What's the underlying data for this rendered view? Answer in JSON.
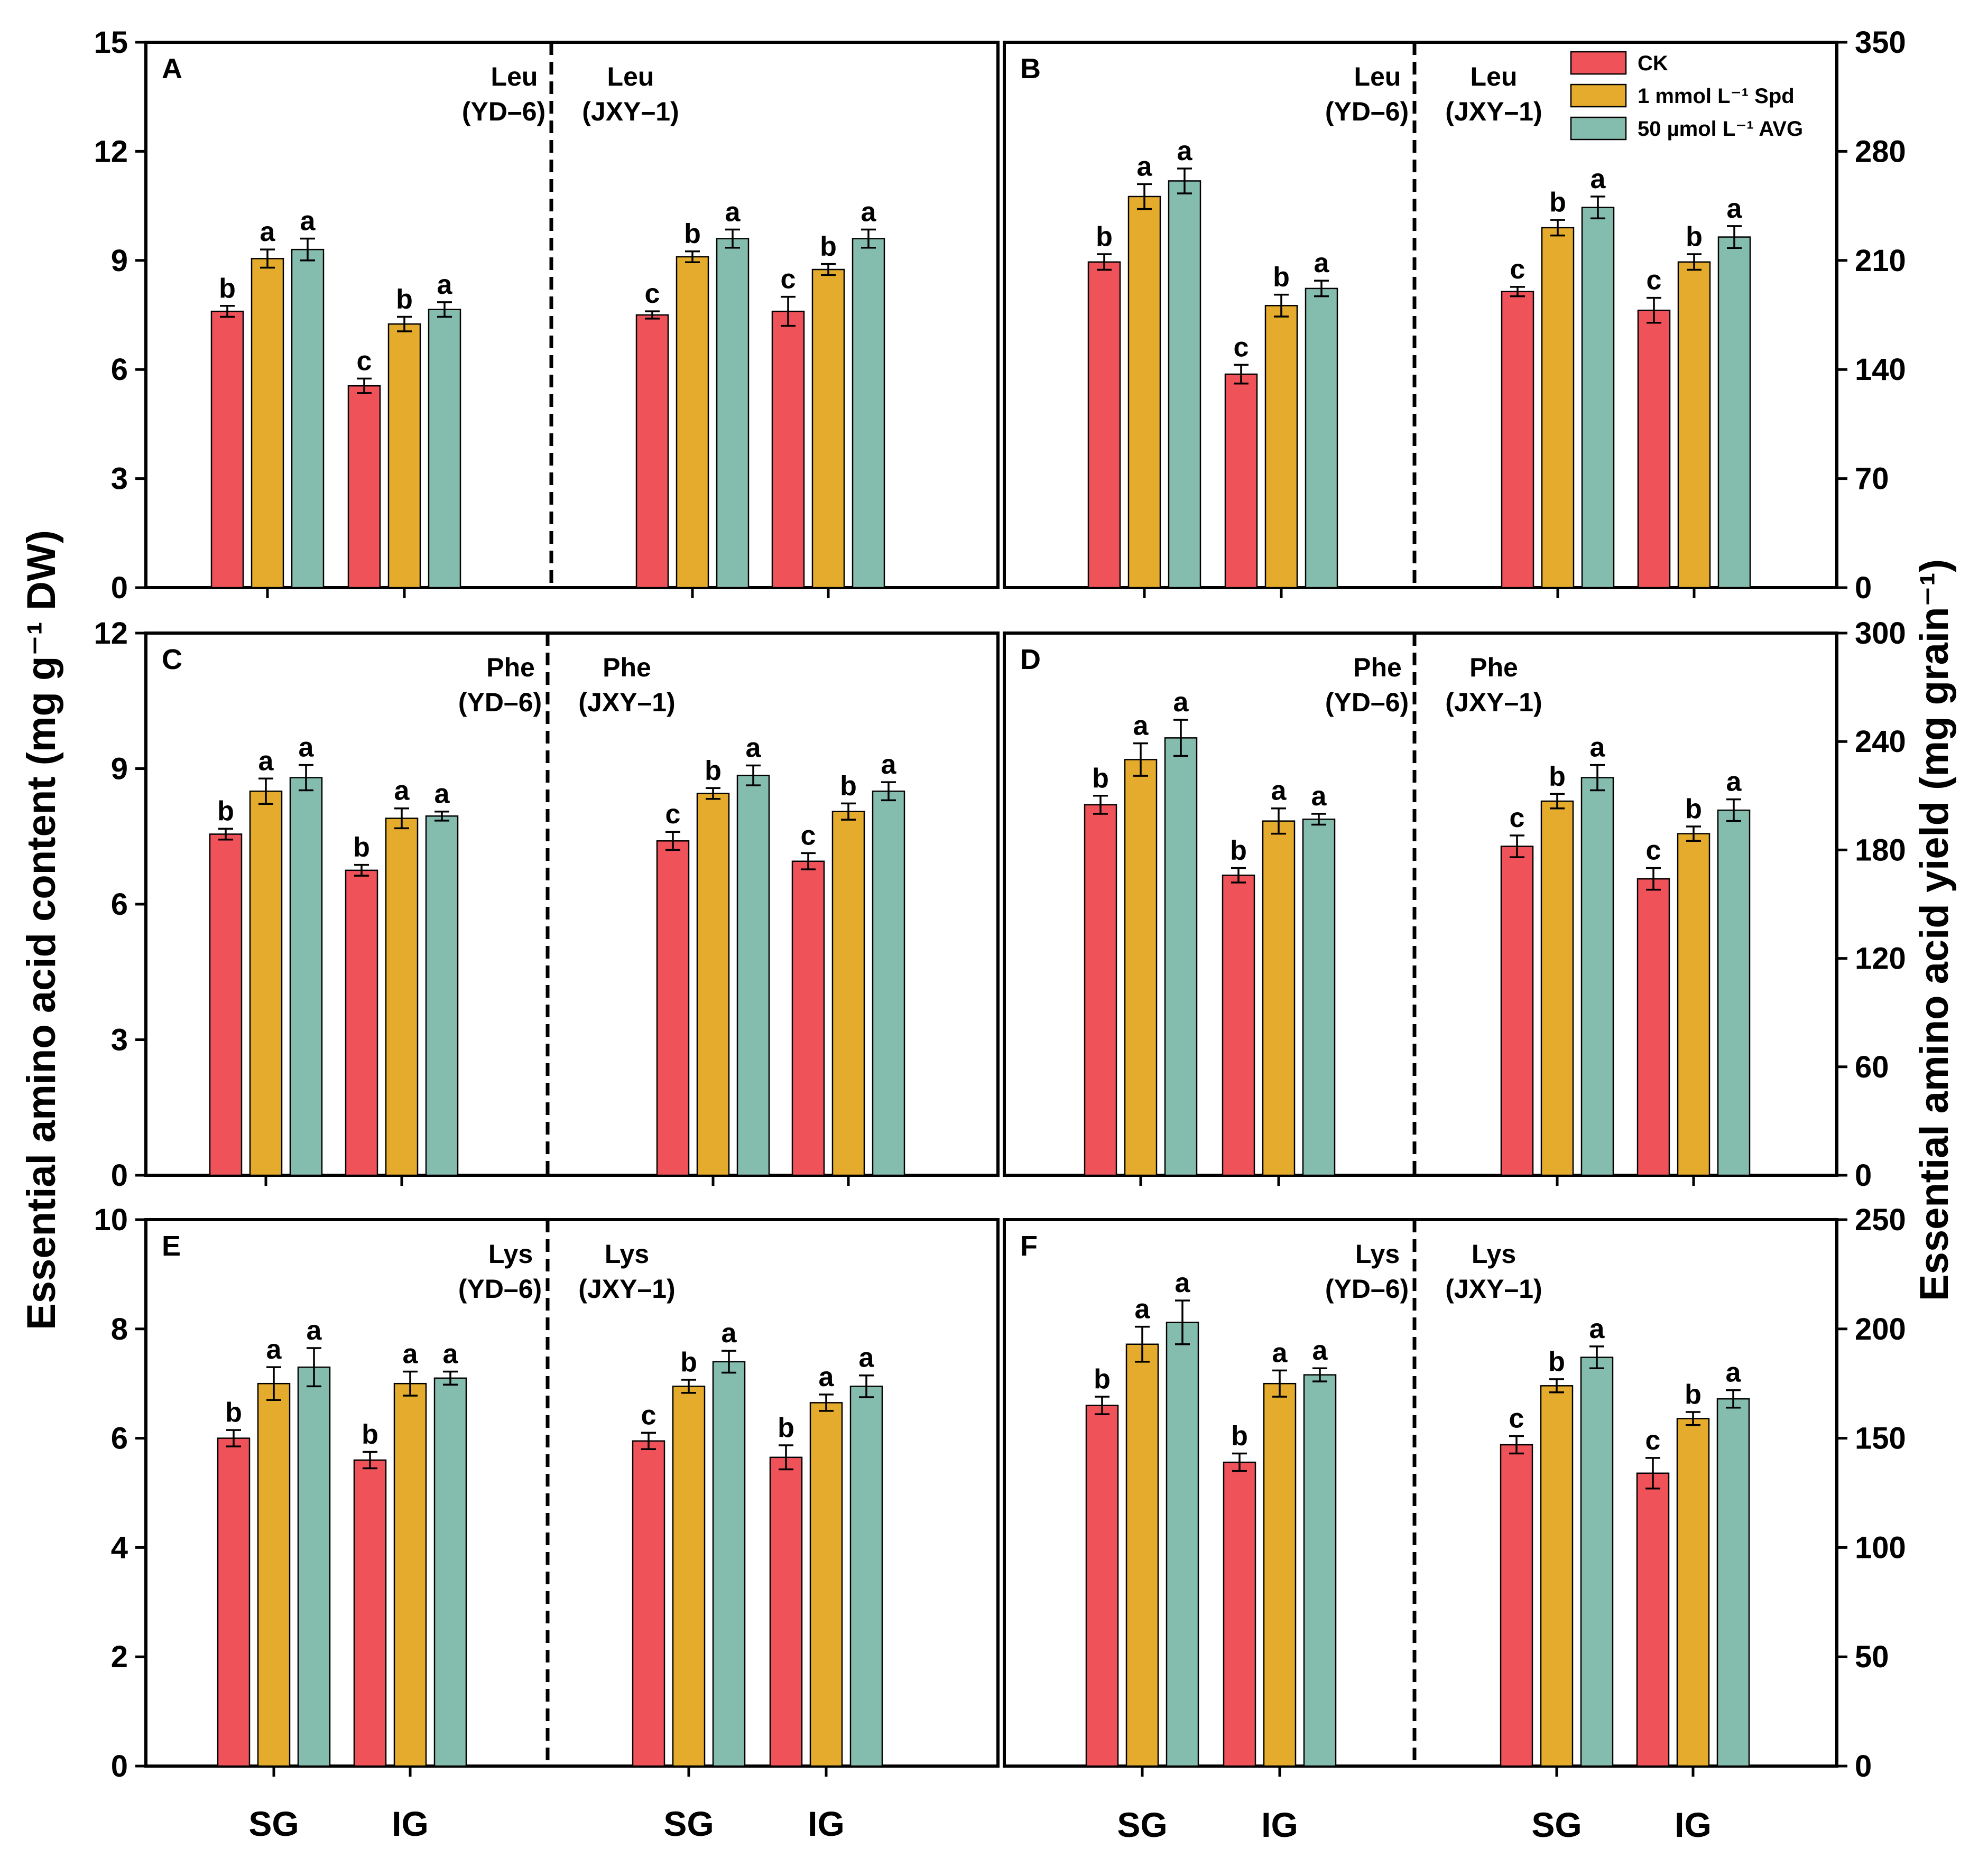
{
  "colors": {
    "CK": "#ef5258",
    "Spd": "#e4ab2c",
    "AVG": "#84bcae"
  },
  "axis_titles": {
    "left": "Essential amino acid content (mg g⁻¹ DW)",
    "right": "Essential amino acid yield (mg grain⁻¹)"
  },
  "legend": [
    {
      "key": "CK",
      "label": "CK"
    },
    {
      "key": "Spd",
      "label": "1 mmol L⁻¹ Spd"
    },
    {
      "key": "AVG",
      "label": "50 µmol L⁻¹ AVG"
    }
  ],
  "group_labels": [
    "SG",
    "IG"
  ],
  "chart_data": [
    {
      "id": "A",
      "type": "bar",
      "amino_acid": "Leu",
      "halves": [
        "YD–6",
        "JXY–1"
      ],
      "categories": [
        "SG",
        "IG"
      ],
      "ylim": [
        0,
        15
      ],
      "yticks": [
        0,
        3,
        6,
        9,
        12,
        15
      ],
      "axis_side": "left",
      "series": [
        {
          "name": "CK",
          "values": [
            [
              7.6,
              5.55
            ],
            [
              7.5,
              7.6
            ]
          ],
          "errors": [
            [
              0.15,
              0.2
            ],
            [
              0.1,
              0.4
            ]
          ],
          "letters": [
            [
              "b",
              "c"
            ],
            [
              "c",
              "c"
            ]
          ]
        },
        {
          "name": "1 mmol L⁻¹ Spd",
          "values": [
            [
              9.05,
              7.25
            ],
            [
              9.1,
              8.75
            ]
          ],
          "errors": [
            [
              0.25,
              0.2
            ],
            [
              0.15,
              0.15
            ]
          ],
          "letters": [
            [
              "a",
              "b"
            ],
            [
              "b",
              "b"
            ]
          ]
        },
        {
          "name": "50 µmol L⁻¹ AVG",
          "values": [
            [
              9.3,
              7.65
            ],
            [
              9.6,
              9.6
            ]
          ],
          "errors": [
            [
              0.3,
              0.2
            ],
            [
              0.25,
              0.25
            ]
          ],
          "letters": [
            [
              "a",
              "a"
            ],
            [
              "a",
              "a"
            ]
          ]
        }
      ]
    },
    {
      "id": "B",
      "type": "bar",
      "amino_acid": "Leu",
      "halves": [
        "YD–6",
        "JXY–1"
      ],
      "categories": [
        "SG",
        "IG"
      ],
      "ylim": [
        0,
        350
      ],
      "yticks": [
        0,
        70,
        140,
        210,
        280,
        350
      ],
      "axis_side": "right",
      "series": [
        {
          "name": "CK",
          "values": [
            [
              209,
              137
            ],
            [
              190,
              178
            ]
          ],
          "errors": [
            [
              5,
              6
            ],
            [
              3,
              8
            ]
          ],
          "letters": [
            [
              "b",
              "c"
            ],
            [
              "c",
              "c"
            ]
          ]
        },
        {
          "name": "1 mmol L⁻¹ Spd",
          "values": [
            [
              251,
              181
            ],
            [
              231,
              209
            ]
          ],
          "errors": [
            [
              8,
              7
            ],
            [
              5,
              5
            ]
          ],
          "letters": [
            [
              "a",
              "b"
            ],
            [
              "b",
              "b"
            ]
          ]
        },
        {
          "name": "50 µmol L⁻¹ AVG",
          "values": [
            [
              261,
              192
            ],
            [
              244,
              225
            ]
          ],
          "errors": [
            [
              8,
              5
            ],
            [
              7,
              7
            ]
          ],
          "letters": [
            [
              "a",
              "a"
            ],
            [
              "a",
              "a"
            ]
          ]
        }
      ]
    },
    {
      "id": "C",
      "type": "bar",
      "amino_acid": "Phe",
      "halves": [
        "YD–6",
        "JXY–1"
      ],
      "categories": [
        "SG",
        "IG"
      ],
      "ylim": [
        0,
        12
      ],
      "yticks": [
        0,
        3,
        6,
        9,
        12
      ],
      "axis_side": "left",
      "series": [
        {
          "name": "CK",
          "values": [
            [
              7.55,
              6.75
            ],
            [
              7.4,
              6.95
            ]
          ],
          "errors": [
            [
              0.12,
              0.12
            ],
            [
              0.2,
              0.18
            ]
          ],
          "letters": [
            [
              "b",
              "b"
            ],
            [
              "c",
              "c"
            ]
          ]
        },
        {
          "name": "1 mmol L⁻¹ Spd",
          "values": [
            [
              8.5,
              7.9
            ],
            [
              8.45,
              8.05
            ]
          ],
          "errors": [
            [
              0.28,
              0.22
            ],
            [
              0.12,
              0.18
            ]
          ],
          "letters": [
            [
              "a",
              "a"
            ],
            [
              "b",
              "b"
            ]
          ]
        },
        {
          "name": "50 µmol L⁻¹ AVG",
          "values": [
            [
              8.8,
              7.95
            ],
            [
              8.85,
              8.5
            ]
          ],
          "errors": [
            [
              0.28,
              0.1
            ],
            [
              0.22,
              0.2
            ]
          ],
          "letters": [
            [
              "a",
              "a"
            ],
            [
              "a",
              "a"
            ]
          ]
        }
      ]
    },
    {
      "id": "D",
      "type": "bar",
      "amino_acid": "Phe",
      "halves": [
        "YD–6",
        "JXY–1"
      ],
      "categories": [
        "SG",
        "IG"
      ],
      "ylim": [
        0,
        300
      ],
      "yticks": [
        0,
        60,
        120,
        180,
        240,
        300
      ],
      "axis_side": "right",
      "series": [
        {
          "name": "CK",
          "values": [
            [
              205,
              166
            ],
            [
              182,
              164
            ]
          ],
          "errors": [
            [
              5,
              4
            ],
            [
              6,
              6
            ]
          ],
          "letters": [
            [
              "b",
              "b"
            ],
            [
              "c",
              "c"
            ]
          ]
        },
        {
          "name": "1 mmol L⁻¹ Spd",
          "values": [
            [
              230,
              196
            ],
            [
              207,
              189
            ]
          ],
          "errors": [
            [
              9,
              7
            ],
            [
              4,
              4
            ]
          ],
          "letters": [
            [
              "a",
              "a"
            ],
            [
              "b",
              "b"
            ]
          ]
        },
        {
          "name": "50 µmol L⁻¹ AVG",
          "values": [
            [
              242,
              197
            ],
            [
              220,
              202
            ]
          ],
          "errors": [
            [
              10,
              3
            ],
            [
              7,
              6
            ]
          ],
          "letters": [
            [
              "a",
              "a"
            ],
            [
              "a",
              "a"
            ]
          ]
        }
      ]
    },
    {
      "id": "E",
      "type": "bar",
      "amino_acid": "Lys",
      "halves": [
        "YD–6",
        "JXY–1"
      ],
      "categories": [
        "SG",
        "IG"
      ],
      "ylim": [
        0,
        10
      ],
      "yticks": [
        0,
        2,
        4,
        6,
        8,
        10
      ],
      "axis_side": "left",
      "series": [
        {
          "name": "CK",
          "values": [
            [
              6.0,
              5.6
            ],
            [
              5.95,
              5.65
            ]
          ],
          "errors": [
            [
              0.15,
              0.15
            ],
            [
              0.15,
              0.22
            ]
          ],
          "letters": [
            [
              "b",
              "b"
            ],
            [
              "c",
              "b"
            ]
          ]
        },
        {
          "name": "1 mmol L⁻¹ Spd",
          "values": [
            [
              7.0,
              7.0
            ],
            [
              6.95,
              6.65
            ]
          ],
          "errors": [
            [
              0.3,
              0.22
            ],
            [
              0.12,
              0.15
            ]
          ],
          "letters": [
            [
              "a",
              "a"
            ],
            [
              "b",
              "a"
            ]
          ]
        },
        {
          "name": "50 µmol L⁻¹ AVG",
          "values": [
            [
              7.3,
              7.1
            ],
            [
              7.4,
              6.95
            ]
          ],
          "errors": [
            [
              0.35,
              0.12
            ],
            [
              0.2,
              0.2
            ]
          ],
          "letters": [
            [
              "a",
              "a"
            ],
            [
              "a",
              "a"
            ]
          ]
        }
      ]
    },
    {
      "id": "F",
      "type": "bar",
      "amino_acid": "Lys",
      "halves": [
        "YD–6",
        "JXY–1"
      ],
      "categories": [
        "SG",
        "IG"
      ],
      "ylim": [
        0,
        250
      ],
      "yticks": [
        0,
        50,
        100,
        150,
        200,
        250
      ],
      "axis_side": "right",
      "series": [
        {
          "name": "CK",
          "values": [
            [
              165,
              139
            ],
            [
              147,
              134
            ]
          ],
          "errors": [
            [
              4,
              4
            ],
            [
              4,
              7
            ]
          ],
          "letters": [
            [
              "b",
              "b"
            ],
            [
              "c",
              "c"
            ]
          ]
        },
        {
          "name": "1 mmol L⁻¹ Spd",
          "values": [
            [
              193,
              175
            ],
            [
              174,
              159
            ]
          ],
          "errors": [
            [
              8,
              6
            ],
            [
              3,
              3
            ]
          ],
          "letters": [
            [
              "a",
              "a"
            ],
            [
              "b",
              "b"
            ]
          ]
        },
        {
          "name": "50 µmol L⁻¹ AVG",
          "values": [
            [
              203,
              179
            ],
            [
              187,
              168
            ]
          ],
          "errors": [
            [
              10,
              3
            ],
            [
              5,
              4
            ]
          ],
          "letters": [
            [
              "a",
              "a"
            ],
            [
              "a",
              "a"
            ]
          ]
        }
      ]
    }
  ]
}
